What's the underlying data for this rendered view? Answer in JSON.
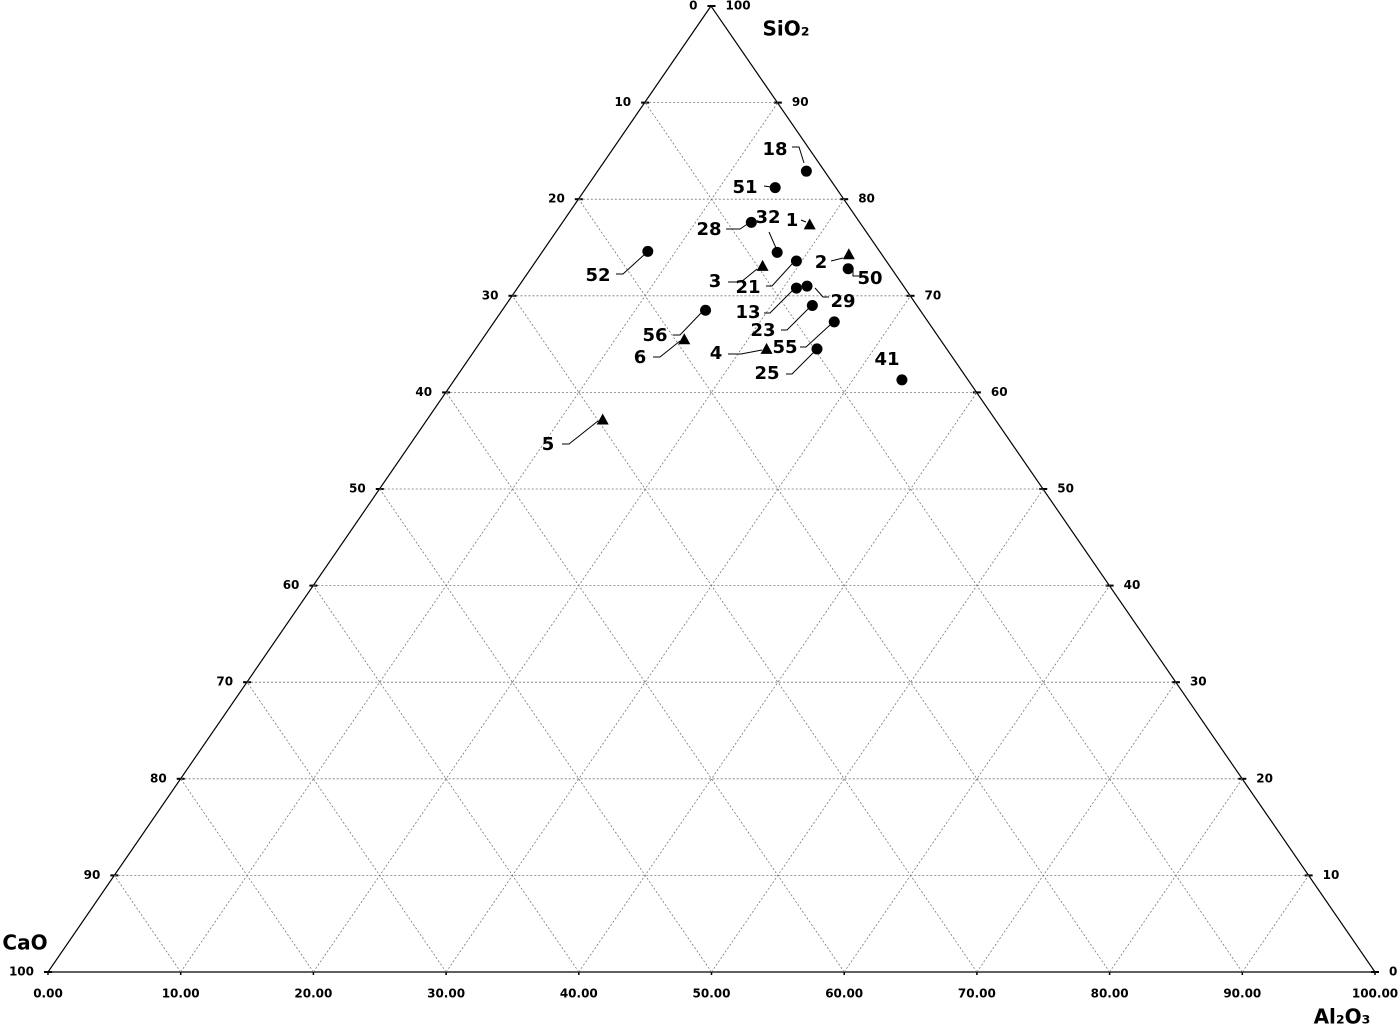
{
  "chart_data": {
    "type": "ternary",
    "axes": {
      "top": "SiO₂",
      "left": "CaO",
      "right": "Al₂O₃"
    },
    "left_ticks": [
      0,
      10,
      20,
      30,
      40,
      50,
      60,
      70,
      80,
      90,
      100
    ],
    "right_ticks": [
      100,
      90,
      80,
      70,
      60,
      50,
      40,
      30,
      20,
      10,
      0
    ],
    "bottom_ticks": [
      {
        "value": 0,
        "label": "0.00"
      },
      {
        "value": 10,
        "label": "10.00"
      },
      {
        "value": 20,
        "label": "20.00"
      },
      {
        "value": 30,
        "label": "30.00"
      },
      {
        "value": 40,
        "label": "40.00"
      },
      {
        "value": 50,
        "label": "50.00"
      },
      {
        "value": 60,
        "label": "60.00"
      },
      {
        "value": 70,
        "label": "70.00"
      },
      {
        "value": 80,
        "label": "80.00"
      },
      {
        "value": 90,
        "label": "90.00"
      },
      {
        "value": 100,
        "label": "100.00"
      }
    ],
    "grid": true,
    "color": "#000000",
    "points": [
      {
        "label": "18",
        "sio2": 82.9,
        "al2o3": 15.7,
        "cao": 1.4,
        "marker": "circle"
      },
      {
        "label": "51",
        "sio2": 81.2,
        "al2o3": 14.2,
        "cao": 4.6,
        "marker": "circle"
      },
      {
        "label": "28",
        "sio2": 77.6,
        "al2o3": 14.2,
        "cao": 8.2,
        "marker": "circle"
      },
      {
        "label": "32",
        "sio2": 74.5,
        "al2o3": 17.7,
        "cao": 7.8,
        "marker": "circle"
      },
      {
        "label": "1",
        "sio2": 77.4,
        "al2o3": 18.7,
        "cao": 3.9,
        "marker": "triangle"
      },
      {
        "label": "2",
        "sio2": 74.3,
        "al2o3": 23.2,
        "cao": 2.5,
        "marker": "triangle"
      },
      {
        "label": "50",
        "sio2": 72.8,
        "al2o3": 23.9,
        "cao": 3.3,
        "marker": "circle"
      },
      {
        "label": "21",
        "sio2": 73.6,
        "al2o3": 19.6,
        "cao": 6.8,
        "marker": "circle"
      },
      {
        "label": "3",
        "sio2": 73.1,
        "al2o3": 17.3,
        "cao": 9.6,
        "marker": "triangle"
      },
      {
        "label": "13",
        "sio2": 70.8,
        "al2o3": 21.0,
        "cao": 8.2,
        "marker": "circle"
      },
      {
        "label": "29",
        "sio2": 71.0,
        "al2o3": 21.7,
        "cao": 7.3,
        "marker": "circle"
      },
      {
        "label": "23",
        "sio2": 69.0,
        "al2o3": 23.1,
        "cao": 7.9,
        "marker": "circle"
      },
      {
        "label": "55",
        "sio2": 67.3,
        "al2o3": 25.6,
        "cao": 7.1,
        "marker": "circle"
      },
      {
        "label": "25",
        "sio2": 64.5,
        "al2o3": 25.7,
        "cao": 9.8,
        "marker": "circle"
      },
      {
        "label": "4",
        "sio2": 64.5,
        "al2o3": 21.9,
        "cao": 13.6,
        "marker": "triangle"
      },
      {
        "label": "41",
        "sio2": 61.3,
        "al2o3": 33.7,
        "cao": 5.0,
        "marker": "circle"
      },
      {
        "label": "52",
        "sio2": 74.6,
        "al2o3": 7.9,
        "cao": 17.5,
        "marker": "circle"
      },
      {
        "label": "56",
        "sio2": 68.5,
        "al2o3": 15.3,
        "cao": 16.2,
        "marker": "circle"
      },
      {
        "label": "6",
        "sio2": 65.5,
        "al2o3": 15.2,
        "cao": 19.3,
        "marker": "triangle"
      },
      {
        "label": "5",
        "sio2": 57.2,
        "al2o3": 13.2,
        "cao": 29.6,
        "marker": "triangle"
      }
    ]
  }
}
